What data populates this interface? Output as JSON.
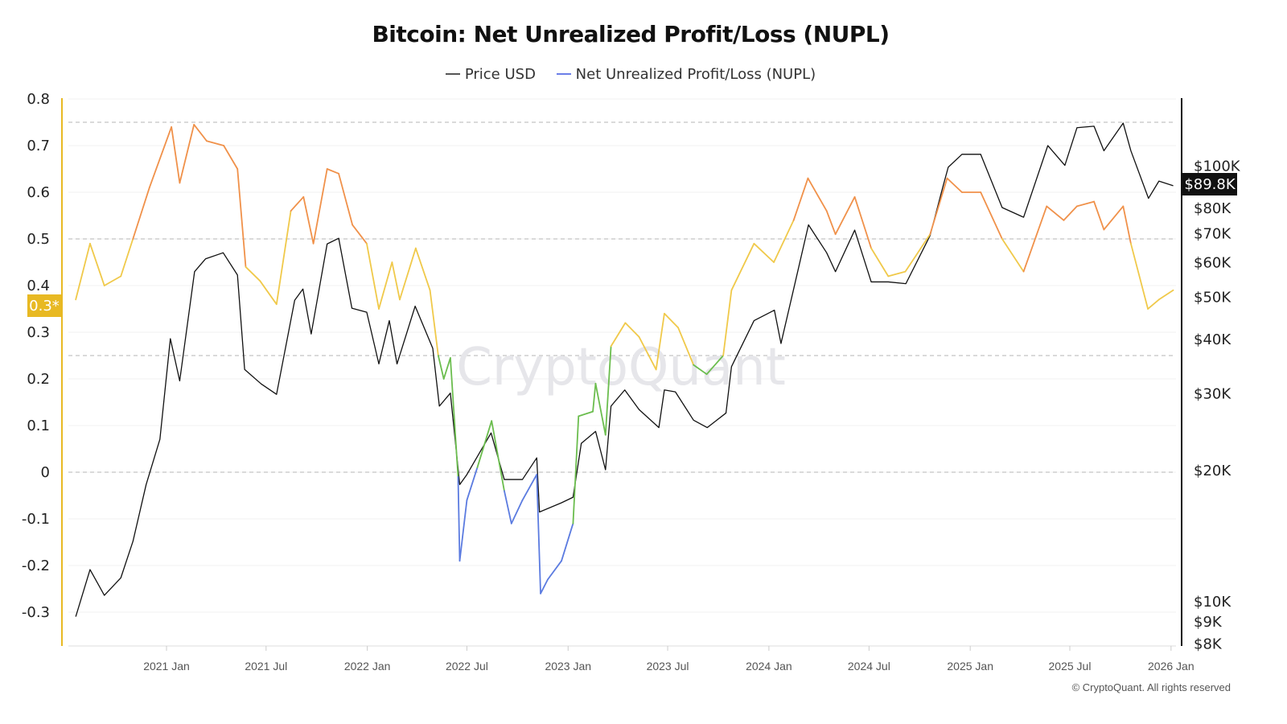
{
  "chart_data": {
    "type": "line",
    "title": "Bitcoin: Net Unrealized Profit/Loss (NUPL)",
    "legend": [
      "Price USD",
      "Net Unrealized Profit/Loss (NUPL)"
    ],
    "legend_placement": "top-center",
    "grid": true,
    "left_axis": {
      "ylim": [
        -0.35,
        0.8
      ],
      "ticks": [
        "0.8",
        "0.7",
        "0.6",
        "0.5",
        "0.4",
        "0.3",
        "0.2",
        "0.1",
        "0",
        "-0.1",
        "-0.2",
        "-0.3"
      ],
      "current_badge": "0.3*"
    },
    "right_axis": {
      "scale": "log",
      "ticks": [
        {
          "v": 100000,
          "l": "$100K"
        },
        {
          "v": 80000,
          "l": "$80K"
        },
        {
          "v": 70000,
          "l": "$70K"
        },
        {
          "v": 60000,
          "l": "$60K"
        },
        {
          "v": 50000,
          "l": "$50K"
        },
        {
          "v": 40000,
          "l": "$40K"
        },
        {
          "v": 30000,
          "l": "$30K"
        },
        {
          "v": 20000,
          "l": "$20K"
        },
        {
          "v": 10000,
          "l": "$10K"
        },
        {
          "v": 9000,
          "l": "$9K"
        },
        {
          "v": 8000,
          "l": "$8K"
        }
      ],
      "current_badge": "$89.8K"
    },
    "x_ticks": [
      {
        "d": "2021-01-01",
        "l": "2021 Jan"
      },
      {
        "d": "2021-07-01",
        "l": "2021 Jul"
      },
      {
        "d": "2022-01-01",
        "l": "2022 Jan"
      },
      {
        "d": "2022-07-01",
        "l": "2022 Jul"
      },
      {
        "d": "2023-01-01",
        "l": "2023 Jan"
      },
      {
        "d": "2023-07-01",
        "l": "2023 Jul"
      },
      {
        "d": "2024-01-01",
        "l": "2024 Jan"
      },
      {
        "d": "2024-07-01",
        "l": "2024 Jul"
      },
      {
        "d": "2025-01-01",
        "l": "2025 Jan"
      },
      {
        "d": "2025-07-01",
        "l": "2025 Jul"
      },
      {
        "d": "2026-01-01",
        "l": "2026 Jan"
      }
    ],
    "reference_lines": [
      0.75,
      0.5,
      0.25,
      0
    ],
    "zone_colors": {
      "above_0.5": "#f0914a",
      "0.25_to_0.5": "#f0c94a",
      "0_to_0.25": "#6bbd4e",
      "below_0": "#5b7be0"
    },
    "price_color": "#111111",
    "nupl": [
      [
        "2020-07-20",
        0.37
      ],
      [
        "2020-08-15",
        0.49
      ],
      [
        "2020-09-10",
        0.4
      ],
      [
        "2020-10-10",
        0.42
      ],
      [
        "2020-11-01",
        0.5
      ],
      [
        "2020-12-01",
        0.61
      ],
      [
        "2021-01-10",
        0.74
      ],
      [
        "2021-01-25",
        0.62
      ],
      [
        "2021-02-20",
        0.745
      ],
      [
        "2021-03-15",
        0.71
      ],
      [
        "2021-04-15",
        0.7
      ],
      [
        "2021-05-10",
        0.65
      ],
      [
        "2021-05-25",
        0.44
      ],
      [
        "2021-06-20",
        0.41
      ],
      [
        "2021-07-20",
        0.36
      ],
      [
        "2021-08-15",
        0.56
      ],
      [
        "2021-09-07",
        0.59
      ],
      [
        "2021-09-25",
        0.49
      ],
      [
        "2021-10-20",
        0.65
      ],
      [
        "2021-11-10",
        0.64
      ],
      [
        "2021-12-05",
        0.53
      ],
      [
        "2021-12-31",
        0.49
      ],
      [
        "2022-01-22",
        0.35
      ],
      [
        "2022-02-15",
        0.45
      ],
      [
        "2022-03-01",
        0.37
      ],
      [
        "2022-03-30",
        0.48
      ],
      [
        "2022-04-25",
        0.39
      ],
      [
        "2022-05-10",
        0.25
      ],
      [
        "2022-05-20",
        0.2
      ],
      [
        "2022-06-01",
        0.245
      ],
      [
        "2022-06-15",
        -0.01
      ],
      [
        "2022-06-18",
        -0.19
      ],
      [
        "2022-07-01",
        -0.06
      ],
      [
        "2022-07-20",
        0.01
      ],
      [
        "2022-08-15",
        0.11
      ],
      [
        "2022-09-07",
        -0.04
      ],
      [
        "2022-09-20",
        -0.11
      ],
      [
        "2022-10-10",
        -0.06
      ],
      [
        "2022-11-05",
        -0.005
      ],
      [
        "2022-11-12",
        -0.26
      ],
      [
        "2022-11-25",
        -0.23
      ],
      [
        "2022-12-20",
        -0.19
      ],
      [
        "2023-01-10",
        -0.11
      ],
      [
        "2023-01-20",
        0.12
      ],
      [
        "2023-02-15",
        0.13
      ],
      [
        "2023-02-20",
        0.19
      ],
      [
        "2023-03-10",
        0.08
      ],
      [
        "2023-03-20",
        0.27
      ],
      [
        "2023-04-15",
        0.32
      ],
      [
        "2023-05-10",
        0.29
      ],
      [
        "2023-06-10",
        0.22
      ],
      [
        "2023-06-25",
        0.34
      ],
      [
        "2023-07-20",
        0.31
      ],
      [
        "2023-08-17",
        0.23
      ],
      [
        "2023-09-10",
        0.21
      ],
      [
        "2023-10-10",
        0.25
      ],
      [
        "2023-10-25",
        0.39
      ],
      [
        "2023-12-05",
        0.49
      ],
      [
        "2024-01-10",
        0.45
      ],
      [
        "2024-02-15",
        0.54
      ],
      [
        "2024-03-12",
        0.63
      ],
      [
        "2024-04-15",
        0.56
      ],
      [
        "2024-05-01",
        0.51
      ],
      [
        "2024-06-05",
        0.59
      ],
      [
        "2024-07-05",
        0.48
      ],
      [
        "2024-08-05",
        0.42
      ],
      [
        "2024-09-05",
        0.43
      ],
      [
        "2024-10-20",
        0.51
      ],
      [
        "2024-11-20",
        0.63
      ],
      [
        "2024-12-17",
        0.6
      ],
      [
        "2025-01-20",
        0.6
      ],
      [
        "2025-02-28",
        0.5
      ],
      [
        "2025-04-08",
        0.43
      ],
      [
        "2025-05-20",
        0.57
      ],
      [
        "2025-06-20",
        0.54
      ],
      [
        "2025-07-14",
        0.57
      ],
      [
        "2025-08-14",
        0.58
      ],
      [
        "2025-09-01",
        0.52
      ],
      [
        "2025-10-06",
        0.57
      ],
      [
        "2025-10-20",
        0.49
      ],
      [
        "2025-11-20",
        0.35
      ],
      [
        "2025-12-10",
        0.37
      ],
      [
        "2026-01-05",
        0.39
      ]
    ],
    "price": [
      [
        "2020-07-20",
        9200
      ],
      [
        "2020-08-15",
        11800
      ],
      [
        "2020-09-10",
        10300
      ],
      [
        "2020-10-10",
        11300
      ],
      [
        "2020-11-01",
        13700
      ],
      [
        "2020-11-25",
        18500
      ],
      [
        "2020-12-20",
        23500
      ],
      [
        "2021-01-08",
        40000
      ],
      [
        "2021-01-25",
        32000
      ],
      [
        "2021-02-21",
        57000
      ],
      [
        "2021-03-13",
        61000
      ],
      [
        "2021-04-14",
        63000
      ],
      [
        "2021-05-10",
        56000
      ],
      [
        "2021-05-23",
        34000
      ],
      [
        "2021-06-22",
        31500
      ],
      [
        "2021-07-20",
        29800
      ],
      [
        "2021-08-22",
        49000
      ],
      [
        "2021-09-06",
        52000
      ],
      [
        "2021-09-21",
        41000
      ],
      [
        "2021-10-20",
        66000
      ],
      [
        "2021-11-10",
        68000
      ],
      [
        "2021-12-04",
        47000
      ],
      [
        "2021-12-31",
        46000
      ],
      [
        "2022-01-22",
        35000
      ],
      [
        "2022-02-10",
        44000
      ],
      [
        "2022-02-24",
        35000
      ],
      [
        "2022-03-29",
        47500
      ],
      [
        "2022-04-30",
        38000
      ],
      [
        "2022-05-12",
        28000
      ],
      [
        "2022-06-01",
        30000
      ],
      [
        "2022-06-18",
        18500
      ],
      [
        "2022-07-01",
        19500
      ],
      [
        "2022-08-14",
        24300
      ],
      [
        "2022-09-07",
        19000
      ],
      [
        "2022-10-10",
        19000
      ],
      [
        "2022-11-05",
        21300
      ],
      [
        "2022-11-10",
        16000
      ],
      [
        "2022-12-20",
        16800
      ],
      [
        "2023-01-10",
        17300
      ],
      [
        "2023-01-25",
        23000
      ],
      [
        "2023-02-20",
        24500
      ],
      [
        "2023-03-10",
        20000
      ],
      [
        "2023-03-20",
        28000
      ],
      [
        "2023-04-14",
        30500
      ],
      [
        "2023-05-10",
        27500
      ],
      [
        "2023-06-15",
        25000
      ],
      [
        "2023-06-25",
        30500
      ],
      [
        "2023-07-15",
        30200
      ],
      [
        "2023-08-17",
        26000
      ],
      [
        "2023-09-11",
        25000
      ],
      [
        "2023-10-15",
        27000
      ],
      [
        "2023-10-25",
        34500
      ],
      [
        "2023-12-05",
        44000
      ],
      [
        "2024-01-11",
        46500
      ],
      [
        "2024-01-23",
        39000
      ],
      [
        "2024-02-15",
        52000
      ],
      [
        "2024-03-13",
        73000
      ],
      [
        "2024-04-15",
        63000
      ],
      [
        "2024-05-01",
        57000
      ],
      [
        "2024-06-05",
        71000
      ],
      [
        "2024-07-05",
        54000
      ],
      [
        "2024-08-05",
        54000
      ],
      [
        "2024-09-06",
        53500
      ],
      [
        "2024-10-20",
        69000
      ],
      [
        "2024-11-12",
        89000
      ],
      [
        "2024-11-22",
        99000
      ],
      [
        "2024-12-17",
        106000
      ],
      [
        "2025-01-20",
        106000
      ],
      [
        "2025-02-28",
        80000
      ],
      [
        "2025-04-08",
        76000
      ],
      [
        "2025-05-22",
        111000
      ],
      [
        "2025-06-22",
        100000
      ],
      [
        "2025-07-14",
        122000
      ],
      [
        "2025-08-14",
        123000
      ],
      [
        "2025-09-01",
        108000
      ],
      [
        "2025-10-06",
        125000
      ],
      [
        "2025-10-20",
        108000
      ],
      [
        "2025-11-21",
        84000
      ],
      [
        "2025-12-10",
        92000
      ],
      [
        "2026-01-05",
        89800
      ]
    ],
    "watermark": "CryptoQuant"
  },
  "footer": "© CryptoQuant. All rights reserved"
}
